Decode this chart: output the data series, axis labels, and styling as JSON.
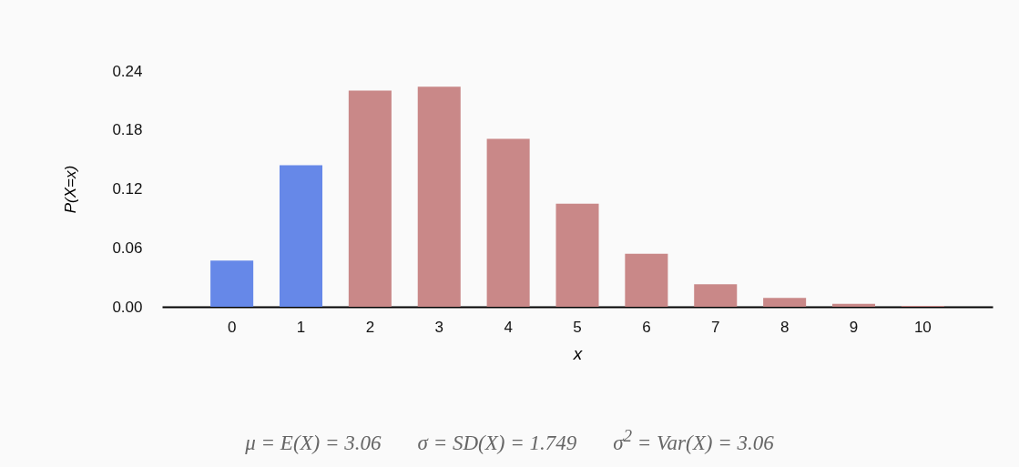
{
  "chart_data": {
    "type": "bar",
    "xlabel": "x",
    "ylabel": "P(X=x)",
    "categories": [
      "0",
      "1",
      "2",
      "3",
      "4",
      "5",
      "6",
      "7",
      "8",
      "9",
      "10"
    ],
    "values": [
      0.047,
      0.144,
      0.22,
      0.224,
      0.171,
      0.105,
      0.054,
      0.023,
      0.009,
      0.003,
      0.001
    ],
    "colors": [
      "#6688e8",
      "#6688e8",
      "#c98888",
      "#c98888",
      "#c98888",
      "#c98888",
      "#c98888",
      "#c98888",
      "#c98888",
      "#c98888",
      "#c98888"
    ],
    "ylim": [
      0,
      0.24
    ],
    "yticks": [
      {
        "value": 0,
        "label": "0.00"
      },
      0.06,
      0.12,
      0.18,
      0.24
    ],
    "grid": false,
    "legend": false,
    "annotations": [
      "μ = E(X) = 3.06",
      "σ = SD(X) = 1.749",
      "σ$^{2}$ = Var(X) = 3.06"
    ]
  }
}
